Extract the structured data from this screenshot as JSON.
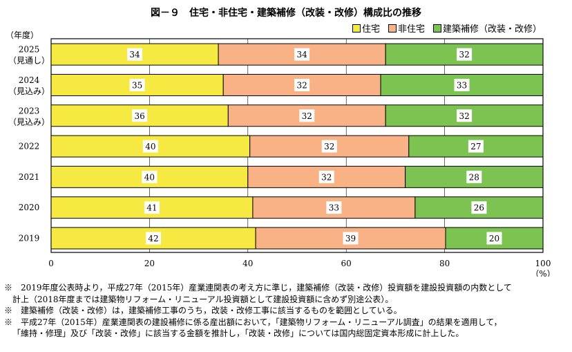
{
  "chart_data": {
    "type": "bar",
    "orientation": "horizontal",
    "stacked": true,
    "title": "図－９　住宅・非住宅・建築補修（改装・改修）構成比の推移",
    "ylabel": "（年度）",
    "xlabel": "（%）",
    "xlim": [
      0,
      100
    ],
    "xticks": [
      "0",
      "20",
      "40",
      "60",
      "80",
      "100"
    ],
    "categories": [
      [
        "2025",
        "（見通し）"
      ],
      [
        "2024",
        "（見込み）"
      ],
      [
        "2023",
        "（見込み）"
      ],
      [
        "2022"
      ],
      [
        "2021"
      ],
      [
        "2020"
      ],
      [
        "2019"
      ]
    ],
    "series": [
      {
        "name": "住宅",
        "color": "#f5e942",
        "values": [
          34,
          35,
          36,
          40,
          40,
          41,
          42
        ]
      },
      {
        "name": "非住宅",
        "color": "#f8b285",
        "values": [
          34,
          32,
          32,
          32,
          32,
          33,
          39
        ]
      },
      {
        "name": "建築補修（改装・改修）",
        "color": "#7dc352",
        "values": [
          32,
          33,
          32,
          27,
          28,
          26,
          20
        ]
      }
    ],
    "legend_position": "top-right"
  },
  "notes": [
    {
      "mark": "※",
      "lines": [
        "2019年度公表時より，平成27年（2015年）産業連関表の考え方に準じ，建築補修（改装・改修）投資額を建設投資額の内数として",
        "計上（2018年度までは建築物リフォーム・リニューアル投資額として建設投資額に含めず別途公表）。"
      ]
    },
    {
      "mark": "※",
      "lines": [
        "建築補修（改装・改修）は，建築補修工事のうち，改装・改修工事に該当するものを範囲としている。"
      ]
    },
    {
      "mark": "※",
      "lines": [
        "平成27年（2015年）産業連関表の建設補修に係る産出額において，「建築物リフォーム・リニューアル調査」の結果を適用して，",
        "「維持・修理」及び「改装・改修」に該当する金額を推計し，「改装・改修」については国内総固定資本形成に計上した。"
      ]
    }
  ]
}
